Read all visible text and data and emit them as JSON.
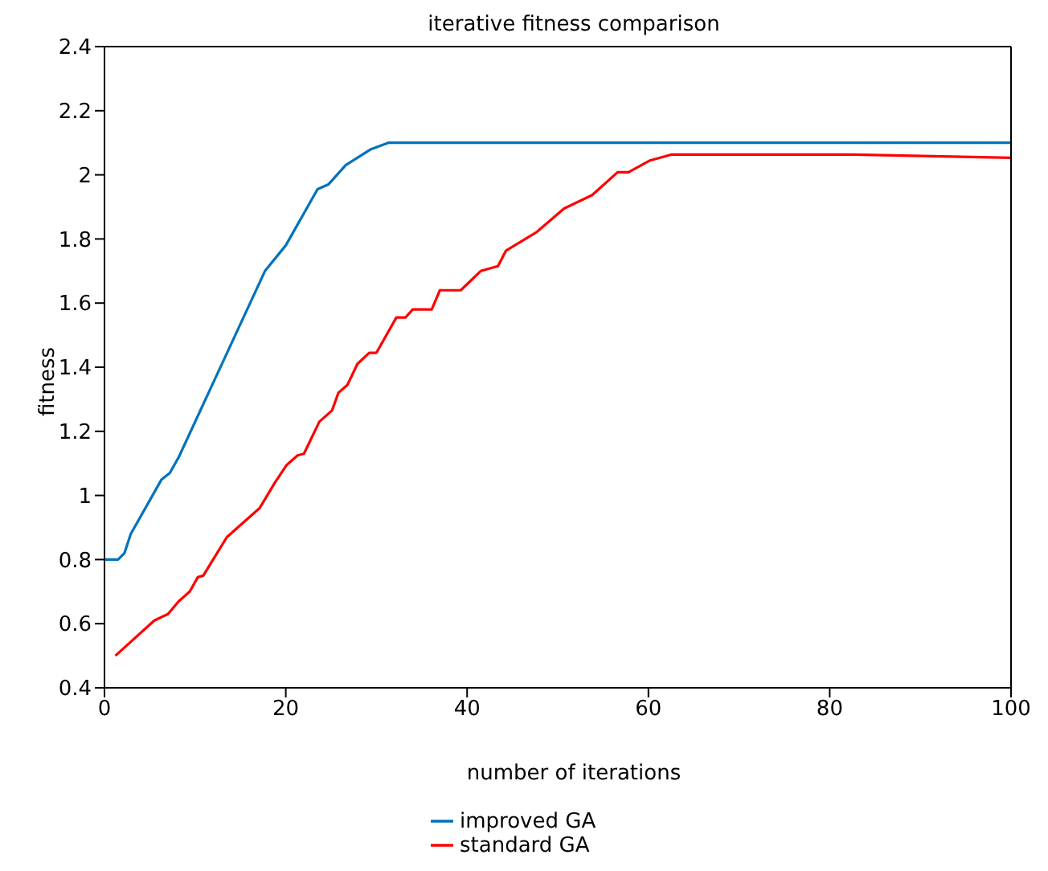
{
  "chart_data": {
    "type": "line",
    "title": "iterative fitness comparison",
    "xlabel": "number of iterations",
    "ylabel": "fitness",
    "xlim": [
      0,
      100
    ],
    "xticks": [
      0,
      20,
      40,
      60,
      80,
      100
    ],
    "ylim": [
      0.4,
      2.4
    ],
    "yticks": [
      0.4,
      0.6,
      0.8,
      1,
      1.2,
      1.4,
      1.6,
      1.8,
      2,
      2.2,
      2.4
    ],
    "legend": "bottom",
    "marker": "none",
    "line_style": "solid",
    "series": [
      {
        "name": "improved GA",
        "color": "#0072bd",
        "x": [
          0,
          1.5,
          2.2,
          2.9,
          6.3,
          7.2,
          8.2,
          17.7,
          20,
          23.5,
          24.7,
          26.6,
          29.4,
          31.3,
          100
        ],
        "values": [
          0.8,
          0.8,
          0.82,
          0.88,
          1.05,
          1.07,
          1.12,
          1.7,
          1.78,
          1.955,
          1.97,
          2.03,
          2.08,
          2.1,
          2.1
        ]
      },
      {
        "name": "standard GA",
        "color": "#ff0000",
        "x": [
          1.2,
          5.5,
          7,
          8.2,
          9.4,
          10.3,
          10.9,
          13.5,
          17.1,
          18.8,
          20.1,
          21.3,
          22,
          23.7,
          25.1,
          25.8,
          26.8,
          27.9,
          29.2,
          30,
          32.2,
          33.2,
          34,
          36.1,
          37,
          39.3,
          41.5,
          43.4,
          44.3,
          47.6,
          50.7,
          53.8,
          56.6,
          57.8,
          60.1,
          62.5,
          82.6,
          100
        ],
        "values": [
          0.5,
          0.61,
          0.63,
          0.67,
          0.7,
          0.745,
          0.75,
          0.87,
          0.96,
          1.04,
          1.095,
          1.125,
          1.13,
          1.23,
          1.265,
          1.32,
          1.345,
          1.41,
          1.445,
          1.445,
          1.555,
          1.555,
          1.58,
          1.58,
          1.64,
          1.64,
          1.7,
          1.715,
          1.764,
          1.82,
          1.895,
          1.937,
          2.008,
          2.008,
          2.044,
          2.063,
          2.063,
          2.053
        ]
      }
    ]
  }
}
